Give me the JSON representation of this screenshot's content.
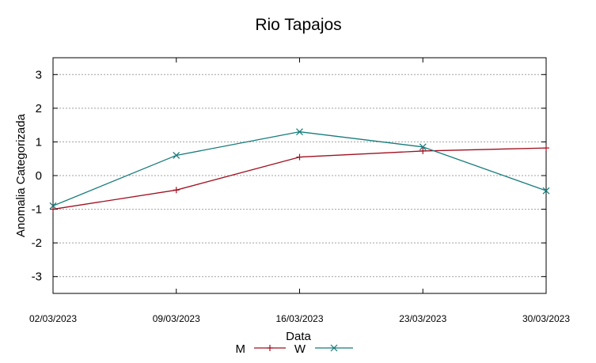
{
  "chart_data": {
    "type": "line",
    "title": "Rio Tapajos",
    "xlabel": "Data",
    "ylabel": "Anomalia Categorizada",
    "ylim": [
      -3.5,
      3.5
    ],
    "yticks": [
      "3",
      "2",
      "1",
      "0",
      "-1",
      "-2",
      "-3"
    ],
    "ytick_values": [
      3,
      2,
      1,
      0,
      -1,
      -2,
      -3
    ],
    "categories": [
      "02/03/2023",
      "09/03/2023",
      "16/03/2023",
      "23/03/2023",
      "30/03/2023"
    ],
    "grid": true,
    "legend_position": "bottom-center",
    "series": [
      {
        "name": "M",
        "color": "#a0101f",
        "marker": "plus",
        "values": [
          -1.0,
          -0.43,
          0.55,
          0.73,
          0.82
        ]
      },
      {
        "name": "W",
        "color": "#167a7a",
        "marker": "cross",
        "values": [
          -0.9,
          0.6,
          1.3,
          0.85,
          -0.45
        ]
      }
    ]
  }
}
